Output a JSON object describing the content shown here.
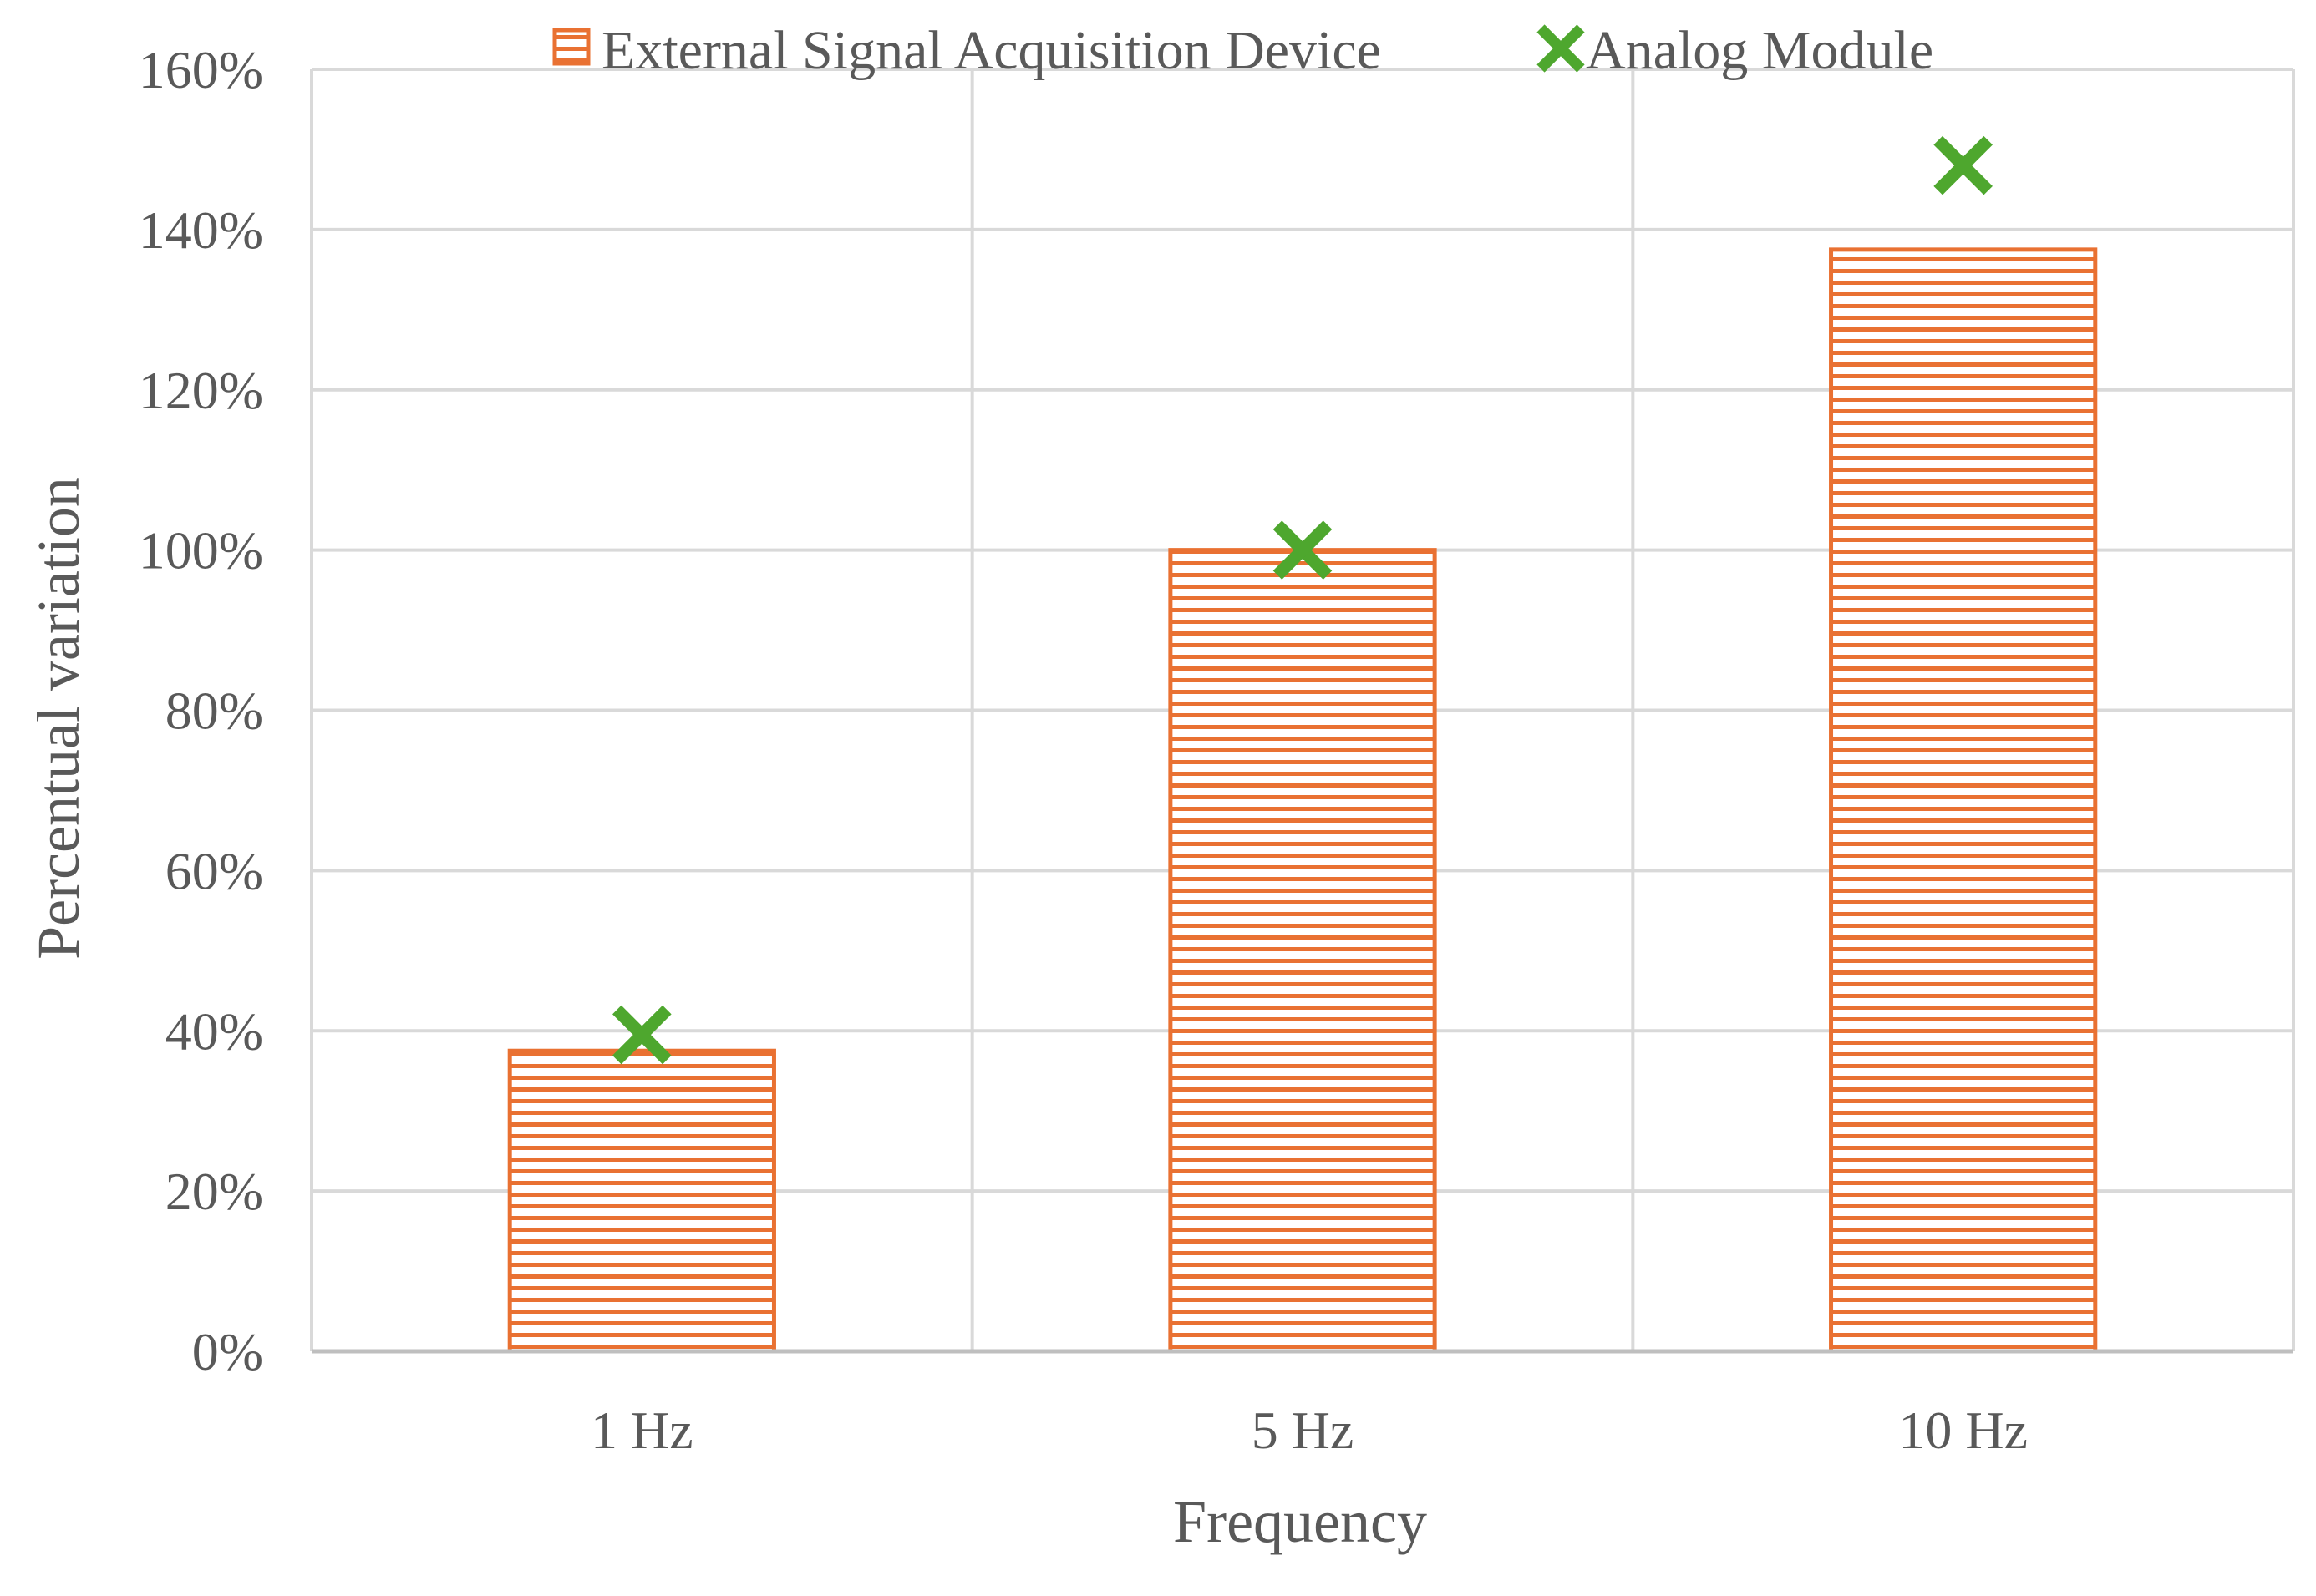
{
  "colors": {
    "bar_series": "#E97132",
    "marker_series": "#4EA72E",
    "grid": "#D9D9D9",
    "axis": "#BFBFBF",
    "text": "#595959"
  },
  "chart_data": {
    "type": "bar",
    "categories": [
      "1 Hz",
      "5 Hz",
      "10 Hz"
    ],
    "series": [
      {
        "name": "External Signal Acquisition Device",
        "kind": "bar",
        "fill_pattern": "horizontal-stripes",
        "values": [
          37.5,
          100,
          137.5
        ]
      },
      {
        "name": "Analog Module",
        "kind": "scatter",
        "marker": "x",
        "values": [
          39.5,
          100,
          148
        ]
      }
    ],
    "xlabel": "Frequency",
    "ylabel": "Percentual variation",
    "ylim": [
      0,
      160
    ],
    "yticks": [
      "0%",
      "20%",
      "40%",
      "60%",
      "80%",
      "100%",
      "120%",
      "140%",
      "160%"
    ],
    "grid": true,
    "legend_position": "top"
  }
}
